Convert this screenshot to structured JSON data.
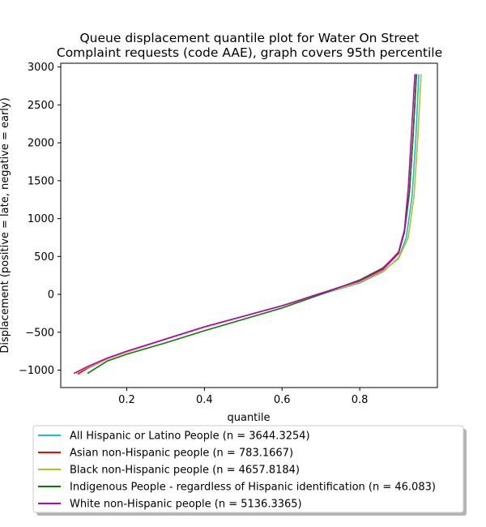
{
  "chart_data": {
    "type": "line",
    "title_lines": [
      "Queue displacement quantile plot for Water On Street",
      "Complaint  requests (code AAE), graph covers 95th percentile"
    ],
    "xlabel": "quantile",
    "ylabel": "Displacement (positive = late, negative = early)",
    "xlim": [
      0.03,
      1.0
    ],
    "ylim": [
      -1230,
      3050
    ],
    "xticks": [
      0.2,
      0.4,
      0.6,
      0.8
    ],
    "xtick_labels": [
      "0.2",
      "0.4",
      "0.6",
      "0.8"
    ],
    "yticks": [
      -1000,
      -500,
      0,
      500,
      1000,
      1500,
      2000,
      2500,
      3000
    ],
    "ytick_labels": [
      "−1000",
      "−500",
      "0",
      "500",
      "1000",
      "1500",
      "2000",
      "2500",
      "3000"
    ],
    "grid": false,
    "legend_position": "below plot",
    "series": [
      {
        "name": "All Hispanic or Latino People (n = 3644.3254)",
        "color": "#17becf",
        "x": [
          0.07,
          0.1,
          0.15,
          0.2,
          0.3,
          0.4,
          0.5,
          0.6,
          0.7,
          0.8,
          0.86,
          0.9,
          0.92,
          0.935,
          0.945,
          0.952
        ],
        "y": [
          -1040,
          -960,
          -850,
          -760,
          -590,
          -430,
          -290,
          -150,
          0,
          150,
          300,
          480,
          750,
          1300,
          2100,
          2900
        ]
      },
      {
        "name": "Asian non-Hispanic people (n = 783.1667)",
        "color": "#ff0000",
        "x": [
          0.075,
          0.1,
          0.15,
          0.2,
          0.3,
          0.4,
          0.5,
          0.6,
          0.7,
          0.8,
          0.86,
          0.9,
          0.915,
          0.928,
          0.938,
          0.946
        ],
        "y": [
          -1050,
          -970,
          -850,
          -760,
          -590,
          -430,
          -290,
          -150,
          10,
          175,
          330,
          540,
          820,
          1350,
          2150,
          2900
        ]
      },
      {
        "name": "Black non-Hispanic people (n = 4657.8184)",
        "color": "#bcbd22",
        "x": [
          0.07,
          0.1,
          0.15,
          0.2,
          0.3,
          0.4,
          0.5,
          0.6,
          0.7,
          0.8,
          0.86,
          0.9,
          0.925,
          0.94,
          0.95,
          0.958
        ],
        "y": [
          -1040,
          -960,
          -850,
          -760,
          -590,
          -430,
          -290,
          -150,
          5,
          160,
          310,
          470,
          750,
          1300,
          2100,
          2900
        ]
      },
      {
        "name": "Indigenous People - regardless of Hispanic identification (n = 46.083)",
        "color": "#008000",
        "x": [
          0.1,
          0.15,
          0.2,
          0.3,
          0.4,
          0.5,
          0.6,
          0.7,
          0.8,
          0.86,
          0.9,
          0.915,
          0.928,
          0.938,
          0.946
        ],
        "y": [
          -1040,
          -880,
          -790,
          -640,
          -480,
          -330,
          -180,
          0,
          190,
          350,
          550,
          820,
          1350,
          2150,
          2900
        ]
      },
      {
        "name": "White non-Hispanic people (n = 5136.3365)",
        "color": "#bf00bf",
        "x": [
          0.065,
          0.1,
          0.15,
          0.2,
          0.3,
          0.4,
          0.5,
          0.6,
          0.7,
          0.8,
          0.86,
          0.9,
          0.915,
          0.925,
          0.934,
          0.942
        ],
        "y": [
          -1040,
          -950,
          -840,
          -750,
          -590,
          -430,
          -290,
          -150,
          15,
          180,
          340,
          560,
          850,
          1400,
          2200,
          2900
        ]
      }
    ]
  }
}
